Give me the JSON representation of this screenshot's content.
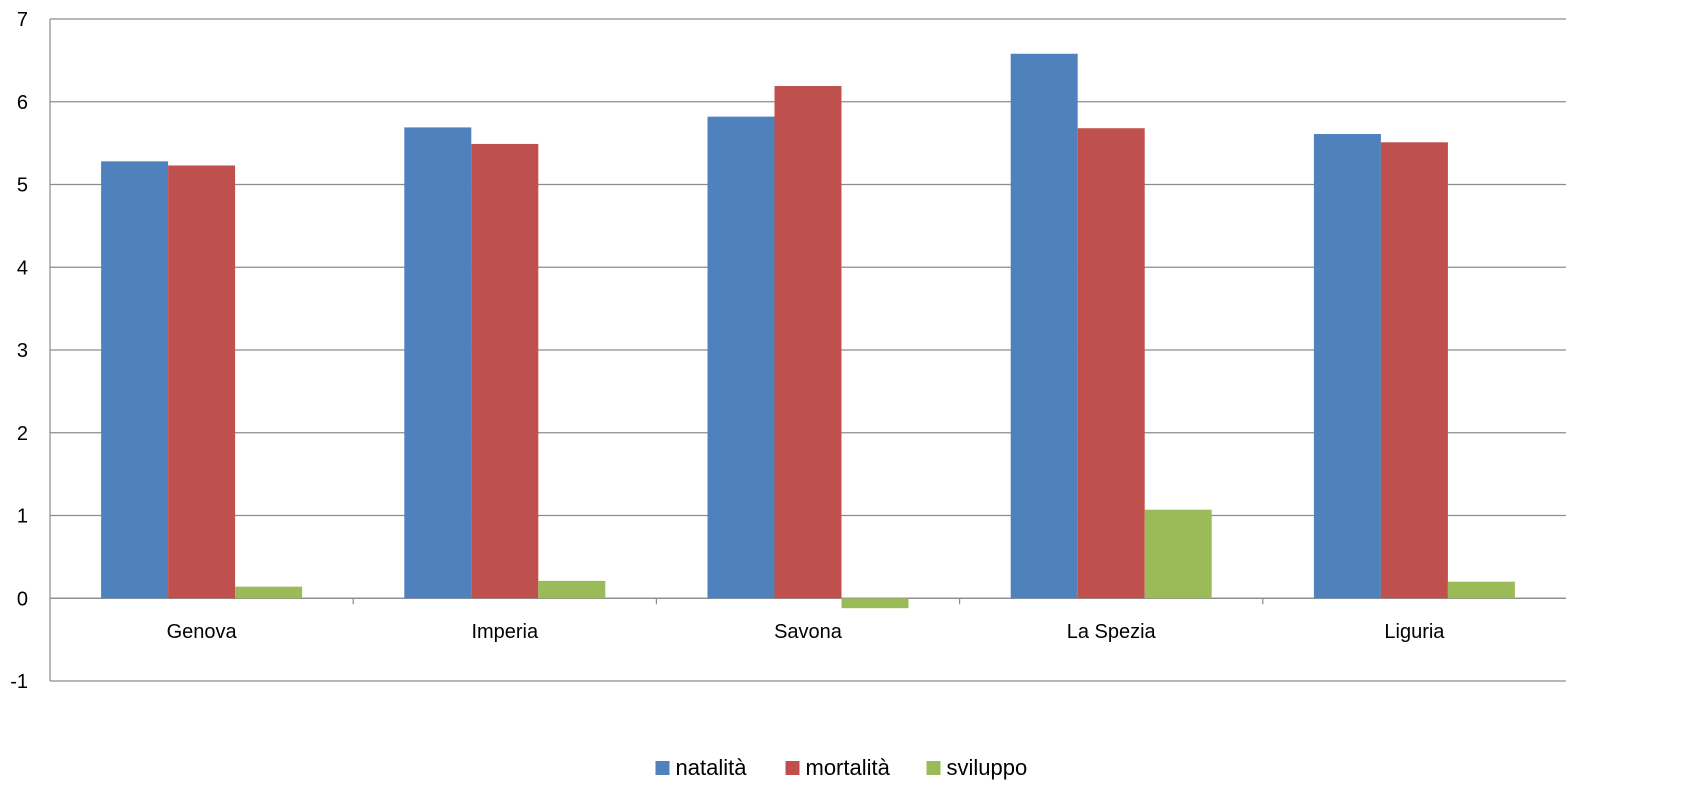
{
  "chart_data": {
    "type": "bar",
    "title": "",
    "xlabel": "",
    "ylabel": "",
    "categories": [
      "Genova",
      "Imperia",
      "Savona",
      "La Spezia",
      "Liguria"
    ],
    "series": [
      {
        "name": "natalità",
        "color": "#4F81BD",
        "values": [
          5.28,
          5.69,
          5.82,
          6.58,
          5.61
        ]
      },
      {
        "name": "mortalità",
        "color": "#C0504D",
        "values": [
          5.23,
          5.49,
          6.19,
          5.68,
          5.51
        ]
      },
      {
        "name": "sviluppo",
        "color": "#9BBB59",
        "values": [
          0.14,
          0.21,
          -0.12,
          1.07,
          0.2
        ]
      }
    ],
    "ylim": [
      -1,
      7
    ],
    "yticks": [
      -1,
      0,
      1,
      2,
      3,
      4,
      5,
      6,
      7
    ],
    "grid": true,
    "legend_position": "bottom"
  }
}
